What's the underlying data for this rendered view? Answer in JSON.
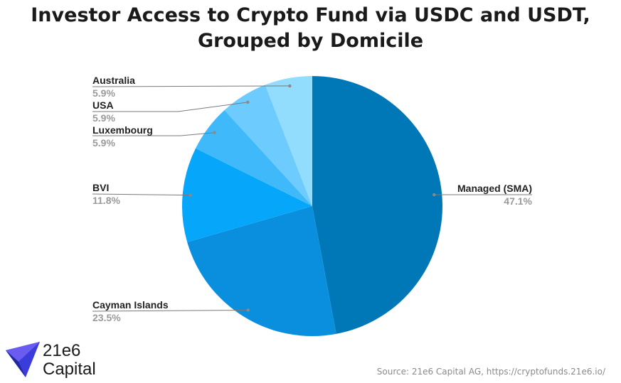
{
  "chart_data": {
    "type": "pie",
    "title_line1": "Investor Access to Crypto Fund via USDC and USDT,",
    "title_line2": "Grouped by Domicile",
    "slices": [
      {
        "label": "Managed (SMA)",
        "percent_label": "47.1%",
        "value": 47.1,
        "color": "#0077b6"
      },
      {
        "label": "Cayman Islands",
        "percent_label": "23.5%",
        "value": 23.5,
        "color": "#0a8fde"
      },
      {
        "label": "BVI",
        "percent_label": "11.8%",
        "value": 11.8,
        "color": "#06a6fb"
      },
      {
        "label": "Luxembourg",
        "percent_label": "5.9%",
        "value": 5.9,
        "color": "#40b9fb"
      },
      {
        "label": "USA",
        "percent_label": "5.9%",
        "value": 5.9,
        "color": "#6ecbfd"
      },
      {
        "label": "Australia",
        "percent_label": "5.9%",
        "value": 5.9,
        "color": "#92ddfe"
      }
    ]
  },
  "logo": {
    "line1": "21e6",
    "line2": "Capital"
  },
  "source": "Source: 21e6 Capital AG, https://cryptofunds.21e6.io/"
}
